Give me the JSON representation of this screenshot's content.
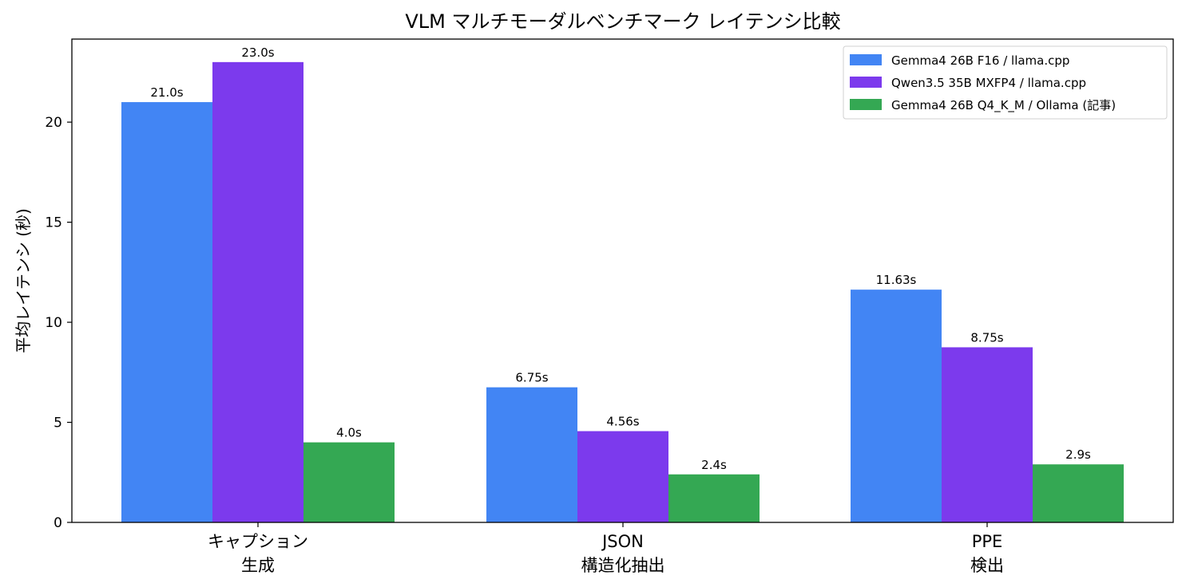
{
  "chart_data": {
    "type": "bar",
    "title": "VLM マルチモーダルベンチマーク レイテンシ比較",
    "ylabel": "平均レイテンシ (秒)",
    "xlabel": "",
    "ylim": [
      0,
      24.15
    ],
    "yticks": [
      0,
      5,
      10,
      15,
      20
    ],
    "categories": [
      [
        "キャプション",
        "生成"
      ],
      [
        "JSON",
        "構造化抽出"
      ],
      [
        "PPE",
        "検出"
      ]
    ],
    "series": [
      {
        "name": "Gemma4 26B F16 / llama.cpp",
        "color": "#4285f4",
        "values": [
          21.0,
          6.75,
          11.63
        ],
        "labels": [
          "21.0s",
          "6.75s",
          "11.63s"
        ]
      },
      {
        "name": "Qwen3.5 35B MXFP4 / llama.cpp",
        "color": "#7c3aed",
        "values": [
          23.0,
          4.56,
          8.75
        ],
        "labels": [
          "23.0s",
          "4.56s",
          "8.75s"
        ]
      },
      {
        "name": "Gemma4 26B Q4_K_M / Ollama (記事)",
        "color": "#34a853",
        "values": [
          4.0,
          2.4,
          2.9
        ],
        "labels": [
          "4.0s",
          "2.4s",
          "2.9s"
        ]
      }
    ],
    "legend_position": "top-right",
    "grid": false
  }
}
